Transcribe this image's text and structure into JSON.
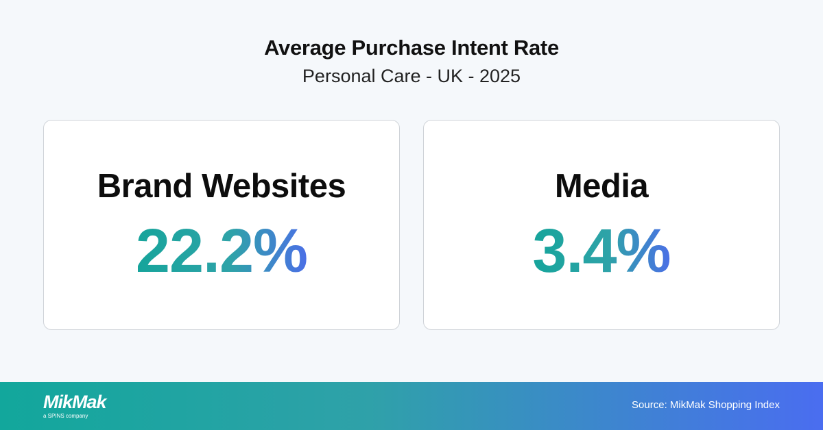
{
  "header": {
    "title": "Average Purchase Intent Rate",
    "subtitle": "Personal Care - UK - 2025"
  },
  "cards": [
    {
      "label": "Brand Websites",
      "value": "22.2%"
    },
    {
      "label": "Media",
      "value": "3.4%"
    }
  ],
  "footer": {
    "logo": "MikMak",
    "logo_tagline": "a SPINS company",
    "source": "Source: MikMak Shopping Index"
  }
}
